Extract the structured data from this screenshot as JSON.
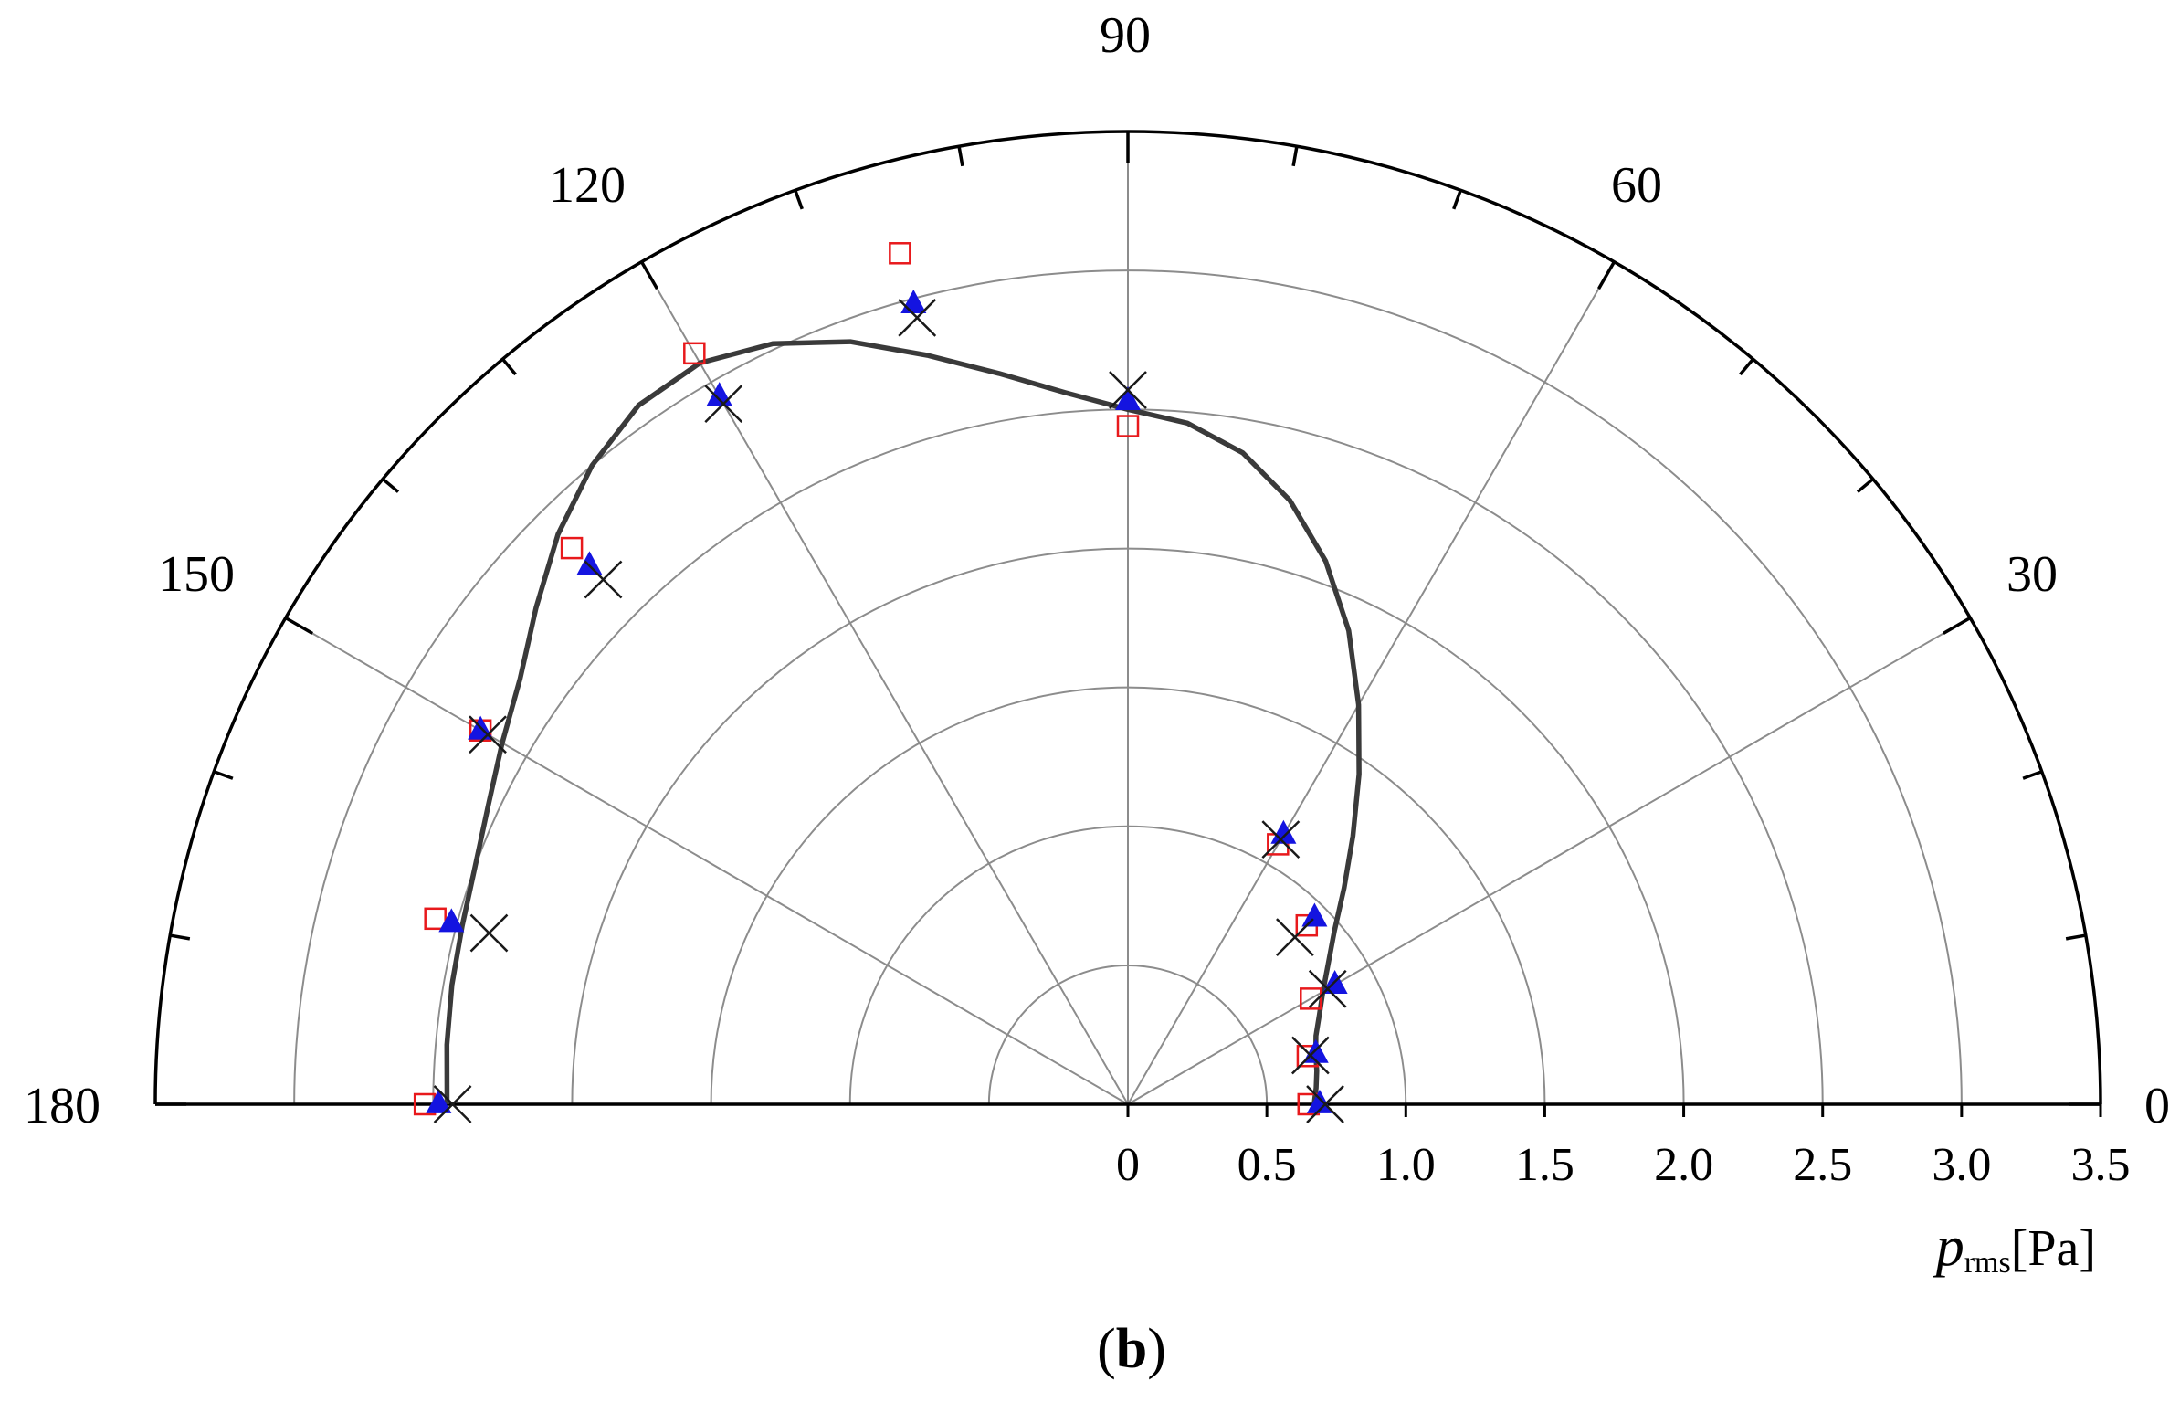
{
  "chart_data": {
    "type": "scatter",
    "subtype": "polar-half",
    "theta_unit": "degrees",
    "theta_range": [
      0,
      180
    ],
    "theta_ticks": [
      0,
      30,
      60,
      90,
      120,
      150,
      180
    ],
    "r_range": [
      0,
      3.5
    ],
    "r_ticks": [
      0,
      0.5,
      1.0,
      1.5,
      2.0,
      2.5,
      3.0,
      3.5
    ],
    "r_tick_labels": [
      "0",
      "0.5",
      "1.0",
      "1.5",
      "2.0",
      "2.5",
      "3.0",
      "3.5"
    ],
    "theta_tick_labels": [
      "0",
      "30",
      "60",
      "90",
      "120",
      "150",
      "180"
    ],
    "r_axis_label": {
      "main": "p",
      "sub": "rms",
      "unit": "[Pa]"
    },
    "caption": {
      "open": "(",
      "bold": "b",
      "close": ")"
    },
    "grid": true,
    "series": [
      {
        "marker": "line",
        "color": "#3a3a3a",
        "points": [
          {
            "theta": 0,
            "r": 0.67
          },
          {
            "theta": 5,
            "r": 0.68
          },
          {
            "theta": 10,
            "r": 0.69
          },
          {
            "theta": 15,
            "r": 0.7
          },
          {
            "theta": 20,
            "r": 0.72
          },
          {
            "theta": 25,
            "r": 0.76
          },
          {
            "theta": 30,
            "r": 0.81
          },
          {
            "theta": 35,
            "r": 0.88
          },
          {
            "theta": 40,
            "r": 0.97
          },
          {
            "theta": 45,
            "r": 1.1
          },
          {
            "theta": 50,
            "r": 1.26
          },
          {
            "theta": 55,
            "r": 1.45
          },
          {
            "theta": 60,
            "r": 1.66
          },
          {
            "theta": 65,
            "r": 1.88
          },
          {
            "theta": 70,
            "r": 2.08
          },
          {
            "theta": 75,
            "r": 2.25
          },
          {
            "theta": 80,
            "r": 2.38
          },
          {
            "theta": 85,
            "r": 2.46
          },
          {
            "theta": 90,
            "r": 2.5
          },
          {
            "theta": 95,
            "r": 2.57
          },
          {
            "theta": 100,
            "r": 2.67
          },
          {
            "theta": 105,
            "r": 2.79
          },
          {
            "theta": 110,
            "r": 2.92
          },
          {
            "theta": 115,
            "r": 3.02
          },
          {
            "theta": 120,
            "r": 3.08
          },
          {
            "theta": 125,
            "r": 3.07
          },
          {
            "theta": 130,
            "r": 3.0
          },
          {
            "theta": 135,
            "r": 2.9
          },
          {
            "theta": 140,
            "r": 2.78
          },
          {
            "theta": 145,
            "r": 2.67
          },
          {
            "theta": 150,
            "r": 2.6
          },
          {
            "theta": 155,
            "r": 2.54
          },
          {
            "theta": 160,
            "r": 2.5
          },
          {
            "theta": 165,
            "r": 2.48
          },
          {
            "theta": 170,
            "r": 2.47
          },
          {
            "theta": 175,
            "r": 2.46
          },
          {
            "theta": 180,
            "r": 2.45
          }
        ]
      },
      {
        "marker": "square-open",
        "color": "#e8191c",
        "points": [
          {
            "theta": 0,
            "r": 0.65
          },
          {
            "theta": 15,
            "r": 0.67
          },
          {
            "theta": 30,
            "r": 0.76
          },
          {
            "theta": 45,
            "r": 0.91
          },
          {
            "theta": 60,
            "r": 1.08
          },
          {
            "theta": 90,
            "r": 2.44
          },
          {
            "theta": 105,
            "r": 3.17
          },
          {
            "theta": 120,
            "r": 3.12
          },
          {
            "theta": 135,
            "r": 2.83
          },
          {
            "theta": 150,
            "r": 2.69
          },
          {
            "theta": 165,
            "r": 2.58
          },
          {
            "theta": 180,
            "r": 2.53
          }
        ]
      },
      {
        "marker": "triangle-filled",
        "color": "#1414e0",
        "points": [
          {
            "theta": 0,
            "r": 0.69
          },
          {
            "theta": 15,
            "r": 0.7
          },
          {
            "theta": 30,
            "r": 0.86
          },
          {
            "theta": 45,
            "r": 0.95
          },
          {
            "theta": 60,
            "r": 1.12
          },
          {
            "theta": 90,
            "r": 2.53
          },
          {
            "theta": 105,
            "r": 2.98
          },
          {
            "theta": 120,
            "r": 2.94
          },
          {
            "theta": 135,
            "r": 2.74
          },
          {
            "theta": 150,
            "r": 2.69
          },
          {
            "theta": 165,
            "r": 2.52
          },
          {
            "theta": 180,
            "r": 2.48
          }
        ]
      },
      {
        "marker": "x-cross",
        "color": "#1a1a1a",
        "points": [
          {
            "theta": 0,
            "r": 0.71
          },
          {
            "theta": 15,
            "r": 0.68
          },
          {
            "theta": 30,
            "r": 0.83
          },
          {
            "theta": 45,
            "r": 0.85
          },
          {
            "theta": 60,
            "r": 1.1
          },
          {
            "theta": 90,
            "r": 2.57
          },
          {
            "theta": 105,
            "r": 2.93
          },
          {
            "theta": 120,
            "r": 2.91
          },
          {
            "theta": 135,
            "r": 2.67
          },
          {
            "theta": 150,
            "r": 2.66
          },
          {
            "theta": 165,
            "r": 2.38
          },
          {
            "theta": 180,
            "r": 2.43
          }
        ]
      }
    ]
  }
}
